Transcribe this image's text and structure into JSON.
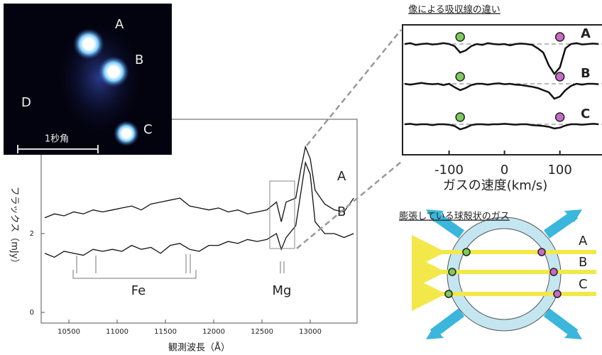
{
  "image": {
    "labels": [
      "A",
      "B",
      "C",
      "D"
    ],
    "scale": "1秒角"
  },
  "chart_data": [
    {
      "type": "line",
      "xlabel": "観測波長（Å）",
      "ylabel": "フラックス（mJy）",
      "x": [
        10250,
        10350,
        10450,
        10550,
        10650,
        10750,
        10850,
        10950,
        11050,
        11150,
        11250,
        11350,
        11450,
        11550,
        11650,
        11750,
        11850,
        11950,
        12050,
        12150,
        12250,
        12350,
        12450,
        12550,
        12650,
        12700,
        12750,
        12850,
        12900,
        12950,
        13000,
        13050,
        13150,
        13250,
        13350,
        13450
      ],
      "series": [
        {
          "name": "A",
          "color": "#111111",
          "values": [
            2.4,
            2.5,
            2.45,
            2.55,
            2.5,
            2.6,
            2.55,
            2.6,
            2.65,
            2.7,
            2.6,
            2.75,
            2.8,
            2.85,
            2.9,
            2.7,
            2.65,
            2.6,
            2.65,
            2.55,
            2.6,
            2.5,
            2.55,
            2.6,
            2.8,
            2.3,
            2.8,
            2.9,
            3.6,
            4.2,
            3.9,
            3.1,
            2.75,
            2.6,
            2.55,
            2.9
          ]
        },
        {
          "name": "B",
          "color": "#111111",
          "values": [
            1.5,
            1.4,
            1.55,
            1.5,
            1.45,
            1.6,
            1.55,
            1.6,
            1.55,
            1.7,
            1.6,
            1.65,
            1.5,
            1.7,
            1.75,
            1.6,
            1.55,
            1.7,
            1.7,
            1.8,
            1.75,
            1.85,
            1.8,
            1.85,
            2.0,
            1.6,
            1.9,
            2.2,
            3.0,
            3.8,
            3.5,
            2.3,
            2.0,
            2.0,
            1.9,
            2.0
          ]
        }
      ],
      "xlim": [
        10213,
        13485
      ],
      "xticks": [
        10500,
        11000,
        11500,
        12000,
        12500,
        13000
      ],
      "ylim": [
        -0.27,
        4.9
      ],
      "yticks": [
        0,
        2
      ],
      "annotations": [
        "Fe",
        "Mg"
      ]
    },
    {
      "type": "step",
      "title": "像による吸収線の違い",
      "xlabel": "ガスの速度(km/s)",
      "x": [
        -180,
        -170,
        -160,
        -150,
        -140,
        -130,
        -120,
        -110,
        -100,
        -90,
        -80,
        -70,
        -60,
        -50,
        -40,
        -30,
        -20,
        -10,
        0,
        10,
        20,
        30,
        40,
        50,
        60,
        70,
        80,
        90,
        100,
        110,
        120,
        130,
        140,
        150,
        160,
        170
      ],
      "series": [
        {
          "name": "A",
          "color": "#111111",
          "values": [
            1.0,
            1.02,
            0.98,
            1.0,
            1.01,
            0.99,
            1.0,
            1.02,
            1.0,
            0.95,
            0.8,
            0.85,
            0.95,
            1.0,
            0.98,
            1.02,
            1.0,
            0.99,
            1.0,
            0.97,
            1.0,
            1.01,
            1.0,
            0.98,
            0.9,
            0.8,
            0.5,
            0.3,
            0.45,
            0.9,
            1.0,
            1.02,
            0.99,
            1.0,
            1.01,
            1.0
          ]
        },
        {
          "name": "B",
          "color": "#111111",
          "values": [
            1.0,
            0.98,
            1.0,
            1.02,
            1.0,
            0.99,
            1.0,
            0.97,
            1.0,
            0.92,
            0.85,
            0.9,
            0.97,
            1.0,
            1.0,
            0.98,
            1.0,
            1.01,
            0.99,
            1.0,
            0.98,
            0.97,
            0.95,
            0.93,
            0.9,
            0.85,
            0.8,
            0.65,
            0.7,
            0.85,
            0.95,
            1.0,
            0.98,
            1.0,
            1.0,
            0.99
          ]
        },
        {
          "name": "C",
          "color": "#111111",
          "values": [
            1.0,
            1.01,
            0.99,
            1.0,
            1.0,
            0.98,
            1.0,
            1.0,
            0.99,
            0.96,
            0.88,
            0.92,
            0.98,
            1.0,
            1.0,
            0.99,
            1.0,
            1.0,
            1.01,
            1.0,
            0.99,
            1.0,
            1.0,
            0.98,
            0.97,
            0.96,
            0.94,
            0.9,
            0.92,
            0.97,
            1.0,
            1.0,
            0.99,
            1.0,
            1.01,
            1.0
          ]
        }
      ],
      "markers": [
        {
          "x": -80,
          "color": "#7ecb5a"
        },
        {
          "x": 100,
          "color": "#c86ac8"
        }
      ],
      "xlim": [
        -184,
        176
      ],
      "xticks": [
        -100,
        0,
        100
      ]
    }
  ],
  "diagram": {
    "title": "膨張している球殻状のガス",
    "labels": [
      "A",
      "B",
      "C"
    ]
  }
}
